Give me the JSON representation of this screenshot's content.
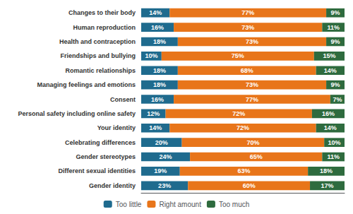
{
  "chart_data": {
    "type": "bar",
    "orientation": "horizontal",
    "stacked": true,
    "data_labels": true,
    "grid": false,
    "legend": "bottom",
    "tick_labels": "y",
    "categories": [
      "Changes to their body",
      "Human reproduction",
      "Health and contraception",
      "Friendships and bullying",
      "Romantic relationships",
      "Managing feelings and emotions",
      "Consent",
      "Personal safety including online safety",
      "Your identity",
      "Celebrating differences",
      "Gender stereotypes",
      "Different sexual identities",
      "Gender identity"
    ],
    "xlim": [
      0,
      100
    ],
    "xticks": [],
    "series": [
      {
        "name": "Too little",
        "color": "#1f6b8e",
        "values": [
          14,
          16,
          18,
          10,
          18,
          18,
          16,
          12,
          14,
          20,
          24,
          19,
          23
        ],
        "value_labels": [
          "14%",
          "16%",
          "18%",
          "10%",
          "18%",
          "18%",
          "16%",
          "12%",
          "14%",
          "20%",
          "24%",
          "19%",
          "23%"
        ]
      },
      {
        "name": "Right amount",
        "color": "#e8751a",
        "values": [
          77,
          73,
          73,
          75,
          68,
          73,
          77,
          72,
          72,
          70,
          65,
          63,
          60
        ],
        "value_labels": [
          "77%",
          "73%",
          "73%",
          "75%",
          "68%",
          "73%",
          "77%",
          "72%",
          "72%",
          "70%",
          "65%",
          "63%",
          "60%"
        ]
      },
      {
        "name": "Too much",
        "color": "#2e6b3e",
        "values": [
          9,
          11,
          9,
          15,
          14,
          9,
          7,
          16,
          14,
          10,
          11,
          18,
          17
        ],
        "value_labels": [
          "9%",
          "11%",
          "9%",
          "15%",
          "14%",
          "9%",
          "7%",
          "16%",
          "14%",
          "10%",
          "11%",
          "18%",
          "17%"
        ]
      }
    ]
  }
}
